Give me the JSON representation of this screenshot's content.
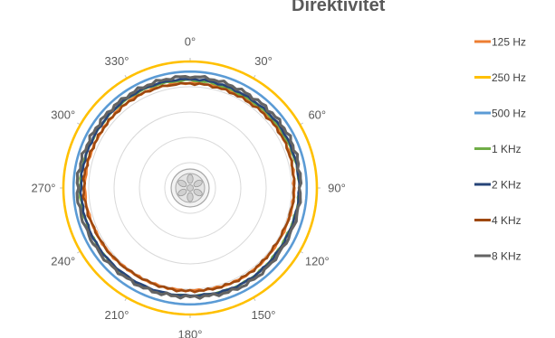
{
  "chart_data": {
    "type": "radar",
    "title": "Direktivitet",
    "angular_axis": {
      "labels": [
        "0°",
        "30°",
        "60°",
        "90°",
        "120°",
        "150°",
        "180°",
        "210°",
        "240°",
        "270°",
        "300°",
        "330°"
      ],
      "degrees": [
        0,
        30,
        60,
        90,
        120,
        150,
        180,
        210,
        240,
        270,
        300,
        330
      ]
    },
    "radial_range": [
      0,
      10
    ],
    "grid": true,
    "legend_position": "right",
    "series": [
      {
        "name": "125 Hz",
        "color": "#ED7D31",
        "radii": [
          8.3,
          8.3,
          8.35,
          8.2,
          8.15,
          8.2,
          8.1,
          8.1,
          8.2,
          8.3,
          8.3,
          8.4
        ],
        "jitter": 0.08
      },
      {
        "name": "250 Hz",
        "color": "#FFC000",
        "radii": [
          10,
          10,
          10,
          10,
          10,
          10,
          10,
          10,
          10,
          10,
          10,
          10
        ],
        "jitter": 0.0
      },
      {
        "name": "500 Hz",
        "color": "#5B9BD5",
        "radii": [
          9.2,
          9.2,
          9.2,
          9.2,
          9.2,
          9.2,
          9.2,
          9.2,
          9.2,
          9.2,
          9.2,
          9.2
        ],
        "jitter": 0.0
      },
      {
        "name": "1 KHz",
        "color": "#70AD47",
        "radii": [
          8.5,
          8.4,
          8.5,
          8.6,
          8.5,
          8.6,
          8.5,
          8.6,
          8.6,
          8.7,
          8.6,
          8.6
        ],
        "jitter": 0.07
      },
      {
        "name": "2  KHz",
        "color": "#264478",
        "radii": [
          8.6,
          8.5,
          8.6,
          8.6,
          8.55,
          8.6,
          8.5,
          8.55,
          8.6,
          8.6,
          8.6,
          8.65
        ],
        "jitter": 0.07
      },
      {
        "name": "4 KHz",
        "color": "#9E480E",
        "radii": [
          8.25,
          8.2,
          8.3,
          8.2,
          8.1,
          8.2,
          8.15,
          8.1,
          8.2,
          8.4,
          8.3,
          8.35
        ],
        "jitter": 0.1
      },
      {
        "name": "8 KHz",
        "color": "#636363",
        "radii": [
          8.8,
          8.7,
          8.8,
          8.7,
          8.7,
          8.8,
          8.6,
          8.7,
          8.8,
          8.9,
          8.8,
          8.8
        ],
        "jitter": 0.14
      }
    ]
  }
}
